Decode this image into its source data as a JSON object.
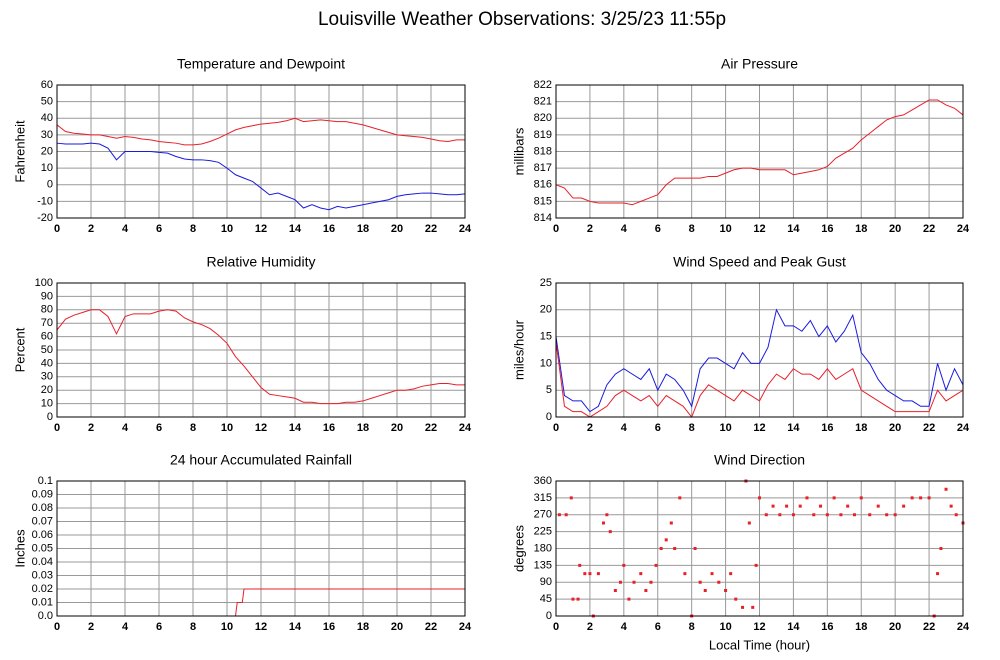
{
  "title": "Louisville Weather Observations: 3/25/23 11:55p",
  "chart_data": [
    {
      "type": "line",
      "title": "Temperature and Dewpoint",
      "ylabel": "Fahrenheit",
      "x": [
        0,
        0.5,
        1,
        1.5,
        2,
        2.5,
        3,
        3.5,
        4,
        4.5,
        5,
        5.5,
        6,
        6.5,
        7,
        7.5,
        8,
        8.5,
        9,
        9.5,
        10,
        10.5,
        11,
        11.5,
        12,
        12.5,
        13,
        13.5,
        14,
        14.5,
        15,
        15.5,
        16,
        16.5,
        17,
        17.5,
        18,
        18.5,
        19,
        19.5,
        20,
        20.5,
        21,
        21.5,
        22,
        22.5,
        23,
        23.5,
        24
      ],
      "series": [
        {
          "color": "#e8202a",
          "values": [
            36,
            32,
            31,
            30.5,
            30,
            30,
            29,
            28,
            29,
            28.5,
            27.5,
            27,
            26,
            25.5,
            25,
            24,
            24,
            24.5,
            26,
            28,
            30.5,
            33,
            34.5,
            35.5,
            36.5,
            37,
            37.5,
            38.5,
            40,
            38,
            38.5,
            39,
            38.5,
            38,
            38,
            37,
            36,
            34.5,
            33,
            31.5,
            30,
            29.5,
            29,
            28.5,
            27.5,
            26.5,
            26,
            27,
            27
          ]
        },
        {
          "color": "#1a1ae0",
          "values": [
            25,
            24.5,
            24.5,
            24.5,
            25,
            24.5,
            22,
            15,
            20,
            20,
            20,
            20,
            19.5,
            19,
            17,
            15.5,
            15,
            15,
            14.5,
            13.5,
            10,
            6,
            4,
            2,
            -2,
            -6,
            -5,
            -7,
            -9,
            -14,
            -12,
            -14,
            -15,
            -13,
            -14,
            -13,
            -12,
            -11,
            -10,
            -9,
            -7,
            -6,
            -5.5,
            -5,
            -5,
            -5.5,
            -6,
            -6,
            -5.5
          ]
        }
      ],
      "xlim": [
        0,
        24
      ],
      "xticks": [
        0,
        2,
        4,
        6,
        8,
        10,
        12,
        14,
        16,
        18,
        20,
        22,
        24
      ],
      "ylim": [
        -20,
        60
      ],
      "yticks": [
        -20,
        -10,
        0,
        10,
        20,
        30,
        40,
        50,
        60
      ],
      "grid": true
    },
    {
      "type": "line",
      "title": "Air Pressure",
      "ylabel": "millibars",
      "x": [
        0,
        0.5,
        1,
        1.5,
        2,
        2.5,
        3,
        3.5,
        4,
        4.5,
        5,
        5.5,
        6,
        6.5,
        7,
        7.5,
        8,
        8.5,
        9,
        9.5,
        10,
        10.5,
        11,
        11.5,
        12,
        12.5,
        13,
        13.5,
        14,
        14.5,
        15,
        15.5,
        16,
        16.5,
        17,
        17.5,
        18,
        18.5,
        19,
        19.5,
        20,
        20.5,
        21,
        21.5,
        22,
        22.5,
        23,
        23.5,
        24
      ],
      "series": [
        {
          "color": "#e8202a",
          "values": [
            816,
            815.8,
            815.2,
            815.2,
            815,
            814.9,
            814.9,
            814.9,
            814.9,
            814.8,
            815,
            815.2,
            815.4,
            816,
            816.4,
            816.4,
            816.4,
            816.4,
            816.5,
            816.5,
            816.7,
            816.9,
            817,
            817,
            816.9,
            816.9,
            816.9,
            816.9,
            816.6,
            816.7,
            816.8,
            816.9,
            817.1,
            817.6,
            817.9,
            818.2,
            818.7,
            819.1,
            819.5,
            819.9,
            820.1,
            820.2,
            820.5,
            820.8,
            821.1,
            821.1,
            820.8,
            820.6,
            820.2
          ]
        }
      ],
      "xlim": [
        0,
        24
      ],
      "xticks": [
        0,
        2,
        4,
        6,
        8,
        10,
        12,
        14,
        16,
        18,
        20,
        22,
        24
      ],
      "ylim": [
        814,
        822
      ],
      "yticks": [
        814,
        815,
        816,
        817,
        818,
        819,
        820,
        821,
        822
      ],
      "grid": true
    },
    {
      "type": "line",
      "title": "Relative Humidity",
      "ylabel": "Percent",
      "x": [
        0,
        0.5,
        1,
        1.5,
        2,
        2.5,
        3,
        3.5,
        4,
        4.5,
        5,
        5.5,
        6,
        6.5,
        7,
        7.5,
        8,
        8.5,
        9,
        9.5,
        10,
        10.5,
        11,
        11.5,
        12,
        12.5,
        13,
        13.5,
        14,
        14.5,
        15,
        15.5,
        16,
        16.5,
        17,
        17.5,
        18,
        18.5,
        19,
        19.5,
        20,
        20.5,
        21,
        21.5,
        22,
        22.5,
        23,
        23.5,
        24
      ],
      "series": [
        {
          "color": "#e8202a",
          "values": [
            65,
            73,
            76,
            78,
            80,
            80,
            75,
            62,
            75,
            77,
            77,
            77,
            79,
            80,
            79,
            74,
            71,
            69,
            66,
            61,
            55,
            45,
            38,
            30,
            22,
            17,
            16,
            15,
            14,
            11,
            11,
            10,
            10,
            10,
            11,
            11,
            12,
            14,
            16,
            18,
            20,
            20,
            21,
            23,
            24,
            25,
            25,
            24,
            24
          ]
        }
      ],
      "xlim": [
        0,
        24
      ],
      "xticks": [
        0,
        2,
        4,
        6,
        8,
        10,
        12,
        14,
        16,
        18,
        20,
        22,
        24
      ],
      "ylim": [
        0,
        100
      ],
      "yticks": [
        0,
        10,
        20,
        30,
        40,
        50,
        60,
        70,
        80,
        90,
        100
      ],
      "grid": true
    },
    {
      "type": "line",
      "title": "Wind Speed and Peak Gust",
      "ylabel": "miles/hour",
      "x": [
        0,
        0.5,
        1,
        1.5,
        2,
        2.5,
        3,
        3.5,
        4,
        4.5,
        5,
        5.5,
        6,
        6.5,
        7,
        7.5,
        8,
        8.5,
        9,
        9.5,
        10,
        10.5,
        11,
        11.5,
        12,
        12.5,
        13,
        13.5,
        14,
        14.5,
        15,
        15.5,
        16,
        16.5,
        17,
        17.5,
        18,
        18.5,
        19,
        19.5,
        20,
        20.5,
        21,
        21.5,
        22,
        22.5,
        23,
        23.5,
        24
      ],
      "series": [
        {
          "color": "#1a1ae0",
          "values": [
            15,
            4,
            3,
            3,
            1,
            2,
            6,
            8,
            9,
            8,
            7,
            9,
            5,
            8,
            7,
            5,
            2,
            9,
            11,
            11,
            10,
            9,
            12,
            10,
            10,
            13,
            20,
            17,
            17,
            16,
            18,
            15,
            17,
            14,
            16,
            19,
            12,
            10,
            7,
            5,
            4,
            3,
            3,
            2,
            2,
            10,
            5,
            9,
            6
          ]
        },
        {
          "color": "#e8202a",
          "values": [
            14,
            2,
            1,
            1,
            0,
            1,
            2,
            4,
            5,
            4,
            3,
            4,
            2,
            4,
            3,
            2,
            0,
            4,
            6,
            5,
            4,
            3,
            5,
            4,
            3,
            6,
            8,
            7,
            9,
            8,
            8,
            7,
            9,
            7,
            8,
            9,
            5,
            4,
            3,
            2,
            1,
            1,
            1,
            1,
            1,
            5,
            3,
            4,
            5
          ]
        }
      ],
      "xlim": [
        0,
        24
      ],
      "xticks": [
        0,
        2,
        4,
        6,
        8,
        10,
        12,
        14,
        16,
        18,
        20,
        22,
        24
      ],
      "ylim": [
        0,
        25
      ],
      "yticks": [
        0,
        5,
        10,
        15,
        20,
        25
      ],
      "grid": true
    },
    {
      "type": "line",
      "title": "24 hour Accumulated Rainfall",
      "ylabel": "Inches",
      "x": [
        0,
        10.5,
        10.6,
        10.9,
        11,
        24
      ],
      "series": [
        {
          "color": "#e8202a",
          "values": [
            0,
            0,
            0.01,
            0.01,
            0.02,
            0.02
          ]
        }
      ],
      "xlim": [
        0,
        24
      ],
      "xticks": [
        0,
        2,
        4,
        6,
        8,
        10,
        12,
        14,
        16,
        18,
        20,
        22,
        24
      ],
      "ylim": [
        0,
        0.1
      ],
      "yticks": [
        {
          "value": 0,
          "label": "0.0"
        },
        0.01,
        0.02,
        0.03,
        0.04,
        0.05,
        0.06,
        0.07,
        0.08,
        0.09,
        0.1
      ],
      "grid": true
    },
    {
      "type": "scatter",
      "title": "Wind Direction",
      "ylabel": "degrees",
      "xlabel": "Local Time (hour)",
      "x": [
        0.2,
        0.6,
        0.9,
        1,
        1.3,
        1.4,
        1.7,
        2,
        2.2,
        2.5,
        2.8,
        3,
        3.2,
        3.5,
        3.8,
        4,
        4.3,
        4.6,
        5,
        5.3,
        5.6,
        5.9,
        6.2,
        6.5,
        6.8,
        7,
        7.3,
        7.6,
        8,
        8.2,
        8.5,
        8.8,
        9.2,
        9.6,
        10,
        10.3,
        10.6,
        11,
        11.2,
        11.4,
        11.6,
        11.8,
        12,
        12.4,
        12.8,
        13.2,
        13.6,
        14,
        14.4,
        14.8,
        15.2,
        15.6,
        16,
        16.4,
        16.8,
        17.2,
        17.6,
        18,
        18.5,
        19,
        19.5,
        20,
        20.5,
        21,
        21.5,
        22,
        22.3,
        22.5,
        22.7,
        23,
        23.3,
        23.6,
        24
      ],
      "series": [
        {
          "color": "#e8202a",
          "values": [
            270,
            270,
            315,
            45,
            45,
            135,
            113,
            113,
            0,
            113,
            248,
            270,
            225,
            68,
            90,
            135,
            45,
            90,
            113,
            68,
            90,
            135,
            180,
            203,
            248,
            180,
            315,
            113,
            0,
            180,
            90,
            68,
            113,
            90,
            68,
            113,
            45,
            23,
            360,
            248,
            23,
            135,
            315,
            270,
            293,
            270,
            293,
            270,
            293,
            315,
            270,
            293,
            270,
            315,
            270,
            293,
            270,
            315,
            270,
            293,
            270,
            270,
            293,
            315,
            315,
            315,
            0,
            113,
            180,
            338,
            293,
            270,
            248
          ]
        }
      ],
      "xlim": [
        0,
        24
      ],
      "xticks": [
        0,
        2,
        4,
        6,
        8,
        10,
        12,
        14,
        16,
        18,
        20,
        22,
        24
      ],
      "ylim": [
        0,
        360
      ],
      "yticks": [
        0,
        45,
        90,
        135,
        180,
        225,
        270,
        315,
        360
      ],
      "grid": true
    }
  ]
}
